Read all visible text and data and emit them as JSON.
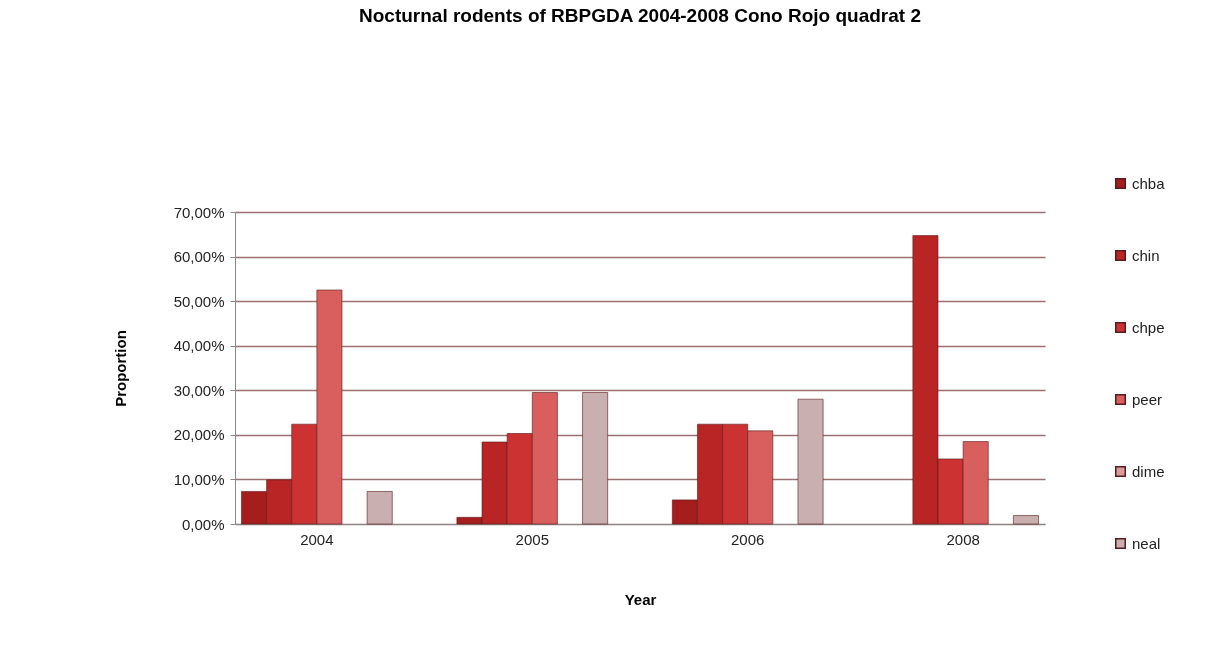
{
  "chart_data": {
    "type": "bar",
    "title": "Nocturnal rodents of RBPGDA 2004-2008 Cono Rojo quadrat 2",
    "xlabel": "Year",
    "ylabel": "Proportion",
    "categories": [
      "2004",
      "2005",
      "2006",
      "2008"
    ],
    "series": [
      {
        "name": "chba",
        "color": "#a51d1d",
        "values": [
          7.3,
          1.5,
          5.4,
          0
        ]
      },
      {
        "name": "chin",
        "color": "#b92424",
        "values": [
          9.9,
          18.4,
          22.4,
          64.7
        ]
      },
      {
        "name": "chpe",
        "color": "#cc3232",
        "values": [
          22.4,
          20.3,
          22.4,
          14.6
        ]
      },
      {
        "name": "peer",
        "color": "#d95f5f",
        "values": [
          52.5,
          29.5,
          20.9,
          18.5
        ]
      },
      {
        "name": "dime",
        "color": "#d89a9a",
        "values": [
          0,
          0,
          0,
          0
        ]
      },
      {
        "name": "neal",
        "color": "#c9afaf",
        "values": [
          7.3,
          29.5,
          28,
          1.9
        ]
      }
    ],
    "ylim": [
      0,
      70
    ],
    "yticks": [
      {
        "value": 0,
        "label": "0,00%"
      },
      {
        "value": 10,
        "label": "10,00%"
      },
      {
        "value": 20,
        "label": "20,00%"
      },
      {
        "value": 30,
        "label": "30,00%"
      },
      {
        "value": 40,
        "label": "40,00%"
      },
      {
        "value": 50,
        "label": "50,00%"
      },
      {
        "value": 60,
        "label": "60,00%"
      },
      {
        "value": 70,
        "label": "70,00%"
      }
    ],
    "grid": "y",
    "legend": "right"
  }
}
